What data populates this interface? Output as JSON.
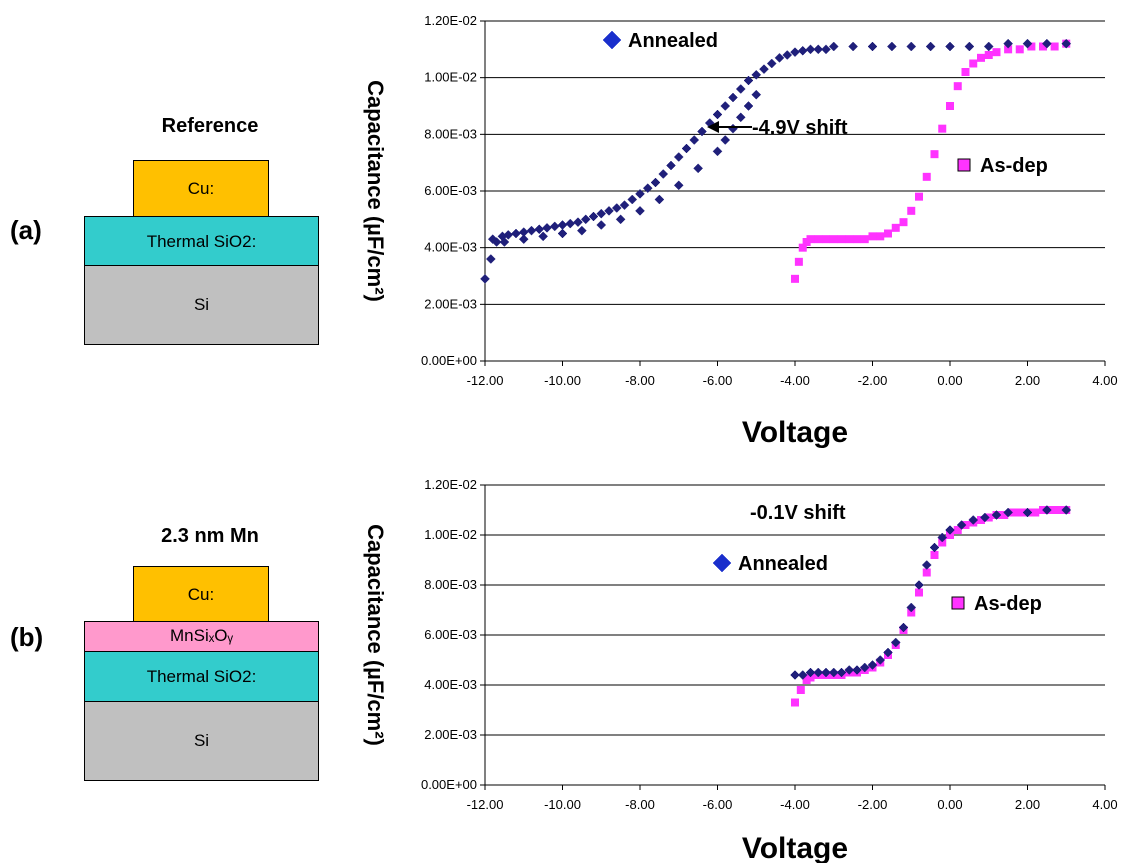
{
  "colors": {
    "annealed": "#1f1f7a",
    "annealed_legend": "#1a2fcc",
    "as_dep": "#ff33ff",
    "cu": "#ffc000",
    "sio2": "#33cccc",
    "si": "#c0c0c0",
    "mnsio": "#ff99cc"
  },
  "panels": [
    {
      "label": "(a)",
      "stack": {
        "title": "Reference",
        "layers": [
          "Cu:",
          "Thermal SiO2:",
          "Si"
        ]
      }
    },
    {
      "label": "(b)",
      "stack": {
        "title": "2.3 nm Mn",
        "layers": [
          "Cu:",
          "MnSiₓOᵧ",
          "Thermal SiO2:",
          "Si"
        ]
      }
    }
  ],
  "chart_data": [
    {
      "type": "scatter",
      "title": "",
      "xlabel": "Voltage",
      "ylabel": "Capacitance (µF/cm²)",
      "xlim": [
        -12,
        4
      ],
      "ylim": [
        0,
        0.012
      ],
      "x_ticks": [
        "-12.00",
        "-10.00",
        "-8.00",
        "-6.00",
        "-4.00",
        "-2.00",
        "0.00",
        "2.00",
        "4.00"
      ],
      "y_ticks": [
        "0.00E+00",
        "2.00E-03",
        "4.00E-03",
        "6.00E-03",
        "8.00E-03",
        "1.00E-02",
        "1.20E-02"
      ],
      "grid": "horizontal",
      "series": [
        {
          "name": "Annealed",
          "marker": "diamond",
          "points": [
            [
              -12.0,
              0.0029
            ],
            [
              -11.85,
              0.0036
            ],
            [
              -11.7,
              0.0042
            ],
            [
              -11.55,
              0.0044
            ],
            [
              -11.4,
              0.00445
            ],
            [
              -11.2,
              0.0045
            ],
            [
              -11.0,
              0.00455
            ],
            [
              -10.8,
              0.0046
            ],
            [
              -10.6,
              0.00465
            ],
            [
              -10.4,
              0.0047
            ],
            [
              -10.2,
              0.00475
            ],
            [
              -10.0,
              0.0048
            ],
            [
              -9.8,
              0.00485
            ],
            [
              -9.6,
              0.0049
            ],
            [
              -9.4,
              0.005
            ],
            [
              -9.2,
              0.0051
            ],
            [
              -9.0,
              0.0052
            ],
            [
              -8.8,
              0.0053
            ],
            [
              -8.6,
              0.0054
            ],
            [
              -8.4,
              0.0055
            ],
            [
              -8.2,
              0.0057
            ],
            [
              -8.0,
              0.0059
            ],
            [
              -7.8,
              0.0061
            ],
            [
              -7.6,
              0.0063
            ],
            [
              -7.4,
              0.0066
            ],
            [
              -7.2,
              0.0069
            ],
            [
              -7.0,
              0.0072
            ],
            [
              -6.8,
              0.0075
            ],
            [
              -6.6,
              0.0078
            ],
            [
              -6.4,
              0.0081
            ],
            [
              -6.2,
              0.0084
            ],
            [
              -6.0,
              0.0087
            ],
            [
              -5.8,
              0.009
            ],
            [
              -5.6,
              0.0093
            ],
            [
              -5.4,
              0.0096
            ],
            [
              -5.2,
              0.0099
            ],
            [
              -5.0,
              0.0101
            ],
            [
              -4.8,
              0.0103
            ],
            [
              -4.6,
              0.0105
            ],
            [
              -4.4,
              0.0107
            ],
            [
              -4.2,
              0.0108
            ],
            [
              -4.0,
              0.0109
            ],
            [
              -3.8,
              0.01095
            ],
            [
              -3.6,
              0.011
            ],
            [
              -3.4,
              0.011
            ],
            [
              -3.2,
              0.011
            ],
            [
              -3.0,
              0.0111
            ],
            [
              -2.5,
              0.0111
            ],
            [
              -2.0,
              0.0111
            ],
            [
              -1.5,
              0.0111
            ],
            [
              -1.0,
              0.0111
            ],
            [
              -0.5,
              0.0111
            ],
            [
              0.0,
              0.0111
            ],
            [
              0.5,
              0.0111
            ],
            [
              1.0,
              0.0111
            ],
            [
              1.5,
              0.0112
            ],
            [
              2.0,
              0.0112
            ],
            [
              2.5,
              0.0112
            ],
            [
              3.0,
              0.0112
            ],
            [
              -11.8,
              0.0043
            ],
            [
              -11.5,
              0.0042
            ],
            [
              -11.0,
              0.0043
            ],
            [
              -10.5,
              0.0044
            ],
            [
              -10.0,
              0.0045
            ],
            [
              -9.5,
              0.0046
            ],
            [
              -9.0,
              0.0048
            ],
            [
              -8.5,
              0.005
            ],
            [
              -8.0,
              0.0053
            ],
            [
              -7.5,
              0.0057
            ],
            [
              -7.0,
              0.0062
            ],
            [
              -6.5,
              0.0068
            ],
            [
              -6.0,
              0.0074
            ],
            [
              -5.8,
              0.0078
            ],
            [
              -5.6,
              0.0082
            ],
            [
              -5.4,
              0.0086
            ],
            [
              -5.2,
              0.009
            ],
            [
              -5.0,
              0.0094
            ]
          ]
        },
        {
          "name": "As-dep",
          "marker": "square",
          "points": [
            [
              -4.0,
              0.0029
            ],
            [
              -3.9,
              0.0035
            ],
            [
              -3.8,
              0.004
            ],
            [
              -3.7,
              0.0042
            ],
            [
              -3.6,
              0.0043
            ],
            [
              -3.4,
              0.0043
            ],
            [
              -3.2,
              0.0043
            ],
            [
              -3.0,
              0.0043
            ],
            [
              -2.8,
              0.0043
            ],
            [
              -2.6,
              0.0043
            ],
            [
              -2.4,
              0.0043
            ],
            [
              -2.2,
              0.0043
            ],
            [
              -2.0,
              0.0044
            ],
            [
              -1.8,
              0.0044
            ],
            [
              -1.6,
              0.0045
            ],
            [
              -1.4,
              0.0047
            ],
            [
              -1.2,
              0.0049
            ],
            [
              -1.0,
              0.0053
            ],
            [
              -0.8,
              0.0058
            ],
            [
              -0.6,
              0.0065
            ],
            [
              -0.4,
              0.0073
            ],
            [
              -0.2,
              0.0082
            ],
            [
              0.0,
              0.009
            ],
            [
              0.2,
              0.0097
            ],
            [
              0.4,
              0.0102
            ],
            [
              0.6,
              0.0105
            ],
            [
              0.8,
              0.0107
            ],
            [
              1.0,
              0.0108
            ],
            [
              1.2,
              0.0109
            ],
            [
              1.5,
              0.011
            ],
            [
              1.8,
              0.011
            ],
            [
              2.1,
              0.0111
            ],
            [
              2.4,
              0.0111
            ],
            [
              2.7,
              0.0111
            ],
            [
              3.0,
              0.0112
            ]
          ]
        }
      ],
      "annotations": {
        "legend_annealed": "Annealed",
        "legend_asdep": "As-dep",
        "shift": "-4.9V shift"
      }
    },
    {
      "type": "scatter",
      "title": "",
      "xlabel": "Voltage",
      "ylabel": "Capacitance (µF/cm²)",
      "xlim": [
        -12,
        4
      ],
      "ylim": [
        0,
        0.012
      ],
      "x_ticks": [
        "-12.00",
        "-10.00",
        "-8.00",
        "-6.00",
        "-4.00",
        "-2.00",
        "0.00",
        "2.00",
        "4.00"
      ],
      "y_ticks": [
        "0.00E+00",
        "2.00E-03",
        "4.00E-03",
        "6.00E-03",
        "8.00E-03",
        "1.00E-02",
        "1.20E-02"
      ],
      "grid": "horizontal",
      "series": [
        {
          "name": "Annealed",
          "marker": "diamond",
          "points": [
            [
              -4.0,
              0.0044
            ],
            [
              -3.8,
              0.0044
            ],
            [
              -3.6,
              0.0045
            ],
            [
              -3.4,
              0.0045
            ],
            [
              -3.2,
              0.0045
            ],
            [
              -3.0,
              0.0045
            ],
            [
              -2.8,
              0.0045
            ],
            [
              -2.6,
              0.0046
            ],
            [
              -2.4,
              0.0046
            ],
            [
              -2.2,
              0.0047
            ],
            [
              -2.0,
              0.0048
            ],
            [
              -1.8,
              0.005
            ],
            [
              -1.6,
              0.0053
            ],
            [
              -1.4,
              0.0057
            ],
            [
              -1.2,
              0.0063
            ],
            [
              -1.0,
              0.0071
            ],
            [
              -0.8,
              0.008
            ],
            [
              -0.6,
              0.0088
            ],
            [
              -0.4,
              0.0095
            ],
            [
              -0.2,
              0.0099
            ],
            [
              0.0,
              0.0102
            ],
            [
              0.3,
              0.0104
            ],
            [
              0.6,
              0.0106
            ],
            [
              0.9,
              0.0107
            ],
            [
              1.2,
              0.0108
            ],
            [
              1.5,
              0.0109
            ],
            [
              2.0,
              0.0109
            ],
            [
              2.5,
              0.011
            ],
            [
              3.0,
              0.011
            ]
          ]
        },
        {
          "name": "As-dep",
          "marker": "square",
          "points": [
            [
              -4.0,
              0.0033
            ],
            [
              -3.85,
              0.0038
            ],
            [
              -3.7,
              0.0042
            ],
            [
              -3.6,
              0.0043
            ],
            [
              -3.4,
              0.0044
            ],
            [
              -3.2,
              0.0044
            ],
            [
              -3.0,
              0.0044
            ],
            [
              -2.8,
              0.0044
            ],
            [
              -2.6,
              0.0045
            ],
            [
              -2.4,
              0.0045
            ],
            [
              -2.2,
              0.0046
            ],
            [
              -2.0,
              0.0047
            ],
            [
              -1.8,
              0.0049
            ],
            [
              -1.6,
              0.0052
            ],
            [
              -1.4,
              0.0056
            ],
            [
              -1.2,
              0.0062
            ],
            [
              -1.0,
              0.0069
            ],
            [
              -0.8,
              0.0077
            ],
            [
              -0.6,
              0.0085
            ],
            [
              -0.4,
              0.0092
            ],
            [
              -0.2,
              0.0097
            ],
            [
              0.0,
              0.01
            ],
            [
              0.2,
              0.0102
            ],
            [
              0.4,
              0.0104
            ],
            [
              0.6,
              0.0105
            ],
            [
              0.8,
              0.0106
            ],
            [
              1.0,
              0.0107
            ],
            [
              1.2,
              0.0108
            ],
            [
              1.4,
              0.0108
            ],
            [
              1.6,
              0.0109
            ],
            [
              1.8,
              0.0109
            ],
            [
              2.0,
              0.0109
            ],
            [
              2.2,
              0.0109
            ],
            [
              2.4,
              0.011
            ],
            [
              2.6,
              0.011
            ],
            [
              2.8,
              0.011
            ],
            [
              3.0,
              0.011
            ]
          ]
        }
      ],
      "annotations": {
        "legend_annealed": "Annealed",
        "legend_asdep": "As-dep",
        "shift": "-0.1V shift"
      }
    }
  ]
}
